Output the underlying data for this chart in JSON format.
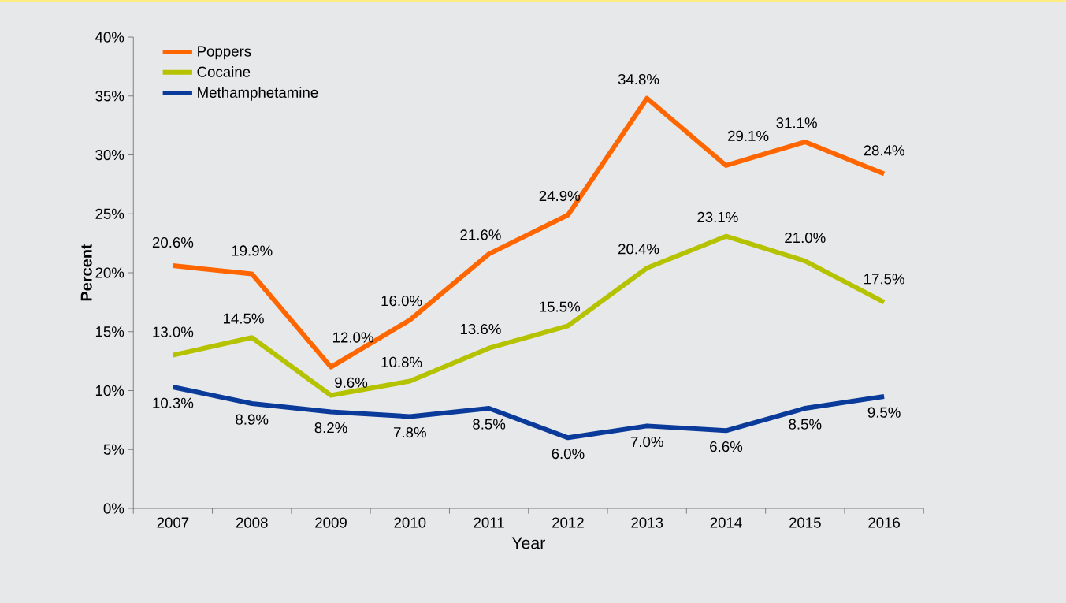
{
  "chart_data": {
    "type": "line",
    "xlabel": "Year",
    "ylabel": "Percent",
    "categories": [
      "2007",
      "2008",
      "2009",
      "2010",
      "2011",
      "2012",
      "2013",
      "2014",
      "2015",
      "2016"
    ],
    "ylim": [
      0,
      40
    ],
    "yticks": [
      {
        "value": 0,
        "label": "0%"
      },
      {
        "value": 5,
        "label": "5%"
      },
      {
        "value": 10,
        "label": "10%"
      },
      {
        "value": 15,
        "label": "15%"
      },
      {
        "value": 20,
        "label": "20%"
      },
      {
        "value": 25,
        "label": "25%"
      },
      {
        "value": 30,
        "label": "30%"
      },
      {
        "value": 35,
        "label": "35%"
      },
      {
        "value": 40,
        "label": "40%"
      }
    ],
    "legend": "top left",
    "series": [
      {
        "name": "Poppers",
        "color": "#ff6600",
        "values": [
          20.6,
          19.9,
          12.0,
          16.0,
          21.6,
          24.9,
          34.8,
          29.1,
          31.1,
          28.4
        ],
        "value_labels": [
          "20.6%",
          "19.9%",
          "12.0%",
          "16.0%",
          "21.6%",
          "24.9%",
          "34.8%",
          "29.1%",
          "31.1%",
          "28.4%"
        ]
      },
      {
        "name": "Cocaine",
        "color": "#b5c200",
        "values": [
          13.0,
          14.5,
          9.6,
          10.8,
          13.6,
          15.5,
          20.4,
          23.1,
          21.0,
          17.5
        ],
        "value_labels": [
          "13.0%",
          "14.5%",
          "9.6%",
          "10.8%",
          "13.6%",
          "15.5%",
          "20.4%",
          "23.1%",
          "21.0%",
          "17.5%"
        ]
      },
      {
        "name": "Methamphetamine",
        "color": "#0a3a9a",
        "values": [
          10.3,
          8.9,
          8.2,
          7.8,
          8.5,
          6.0,
          7.0,
          6.6,
          8.5,
          9.5
        ],
        "value_labels": [
          "10.3%",
          "8.9%",
          "8.2%",
          "7.8%",
          "8.5%",
          "6.0%",
          "7.0%",
          "6.6%",
          "8.5%",
          "9.5%"
        ]
      }
    ]
  }
}
